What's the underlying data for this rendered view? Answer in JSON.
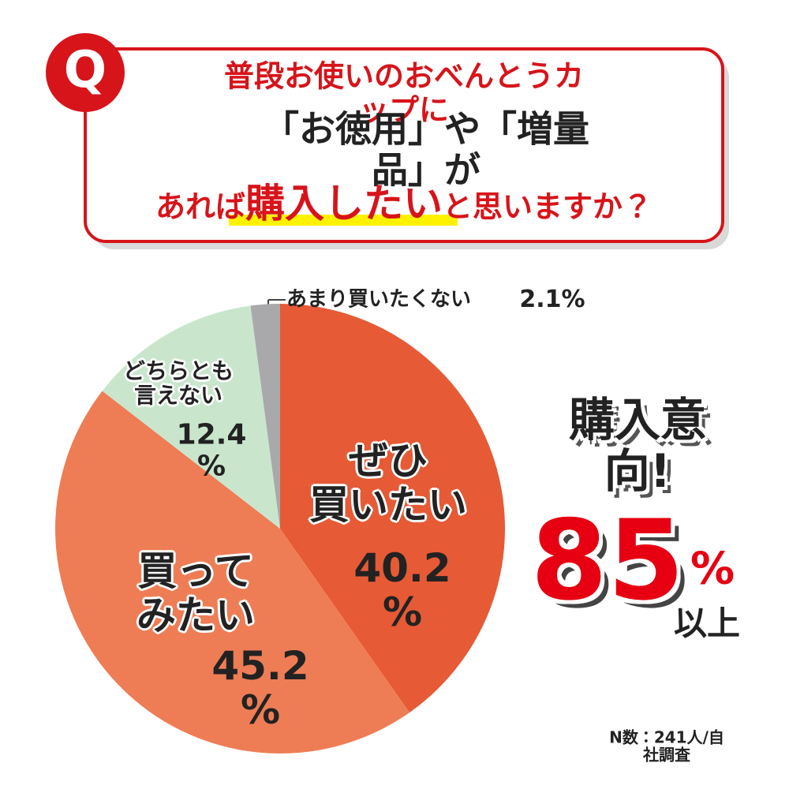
{
  "question": {
    "badge": "Q",
    "line1": "普段お使いのおべんとうカップに",
    "line2": "「お徳用」や「増量品」が",
    "line3_before": "あれば",
    "line3_highlight": "購入したい",
    "line3_after": "と思いますか？"
  },
  "chart_data": {
    "type": "pie",
    "categories": [
      "ぜひ\n買いたい",
      "買って\nみたい",
      "どちらとも\n言えない",
      "あまり買いたくない"
    ],
    "values": [
      40.2,
      45.2,
      12.4,
      2.1
    ],
    "value_labels": [
      "40.2\n%",
      "45.2\n%",
      "12.4\n%",
      "2.1%"
    ],
    "colors": [
      "#e65a35",
      "#ee7d55",
      "#c9e6cd",
      "#a9a9ab"
    ]
  },
  "callout": {
    "headline": "購入意向!",
    "number": "85",
    "unit": "%",
    "suffix": "以上"
  },
  "footnote": "N数：241人/自社調査"
}
